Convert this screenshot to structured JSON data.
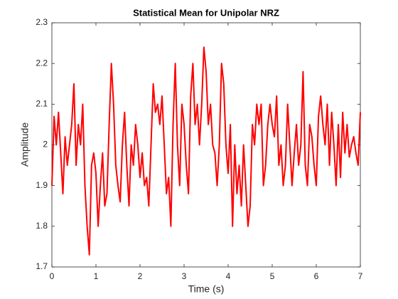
{
  "chart_data": {
    "type": "line",
    "title": "Statistical Mean for Unipolar NRZ",
    "xlabel": "Time (s)",
    "ylabel": "Amplitude",
    "x": [
      0,
      0.05,
      0.1,
      0.15,
      0.2,
      0.25,
      0.3,
      0.35,
      0.4,
      0.45,
      0.5,
      0.55,
      0.6,
      0.65,
      0.7,
      0.75,
      0.8,
      0.85,
      0.9,
      0.95,
      1,
      1.05,
      1.1,
      1.15,
      1.2,
      1.25,
      1.3,
      1.35,
      1.4,
      1.45,
      1.5,
      1.55,
      1.6,
      1.65,
      1.7,
      1.75,
      1.8,
      1.85,
      1.9,
      1.95,
      2,
      2.05,
      2.1,
      2.15,
      2.2,
      2.25,
      2.3,
      2.35,
      2.4,
      2.45,
      2.5,
      2.55,
      2.6,
      2.65,
      2.7,
      2.75,
      2.8,
      2.85,
      2.9,
      2.95,
      3,
      3.05,
      3.1,
      3.15,
      3.2,
      3.25,
      3.3,
      3.35,
      3.4,
      3.45,
      3.5,
      3.55,
      3.6,
      3.65,
      3.7,
      3.75,
      3.8,
      3.85,
      3.9,
      3.95,
      4,
      4.05,
      4.1,
      4.15,
      4.2,
      4.25,
      4.3,
      4.35,
      4.4,
      4.45,
      4.5,
      4.55,
      4.6,
      4.65,
      4.7,
      4.75,
      4.8,
      4.85,
      4.9,
      4.95,
      5,
      5.05,
      5.1,
      5.15,
      5.2,
      5.25,
      5.3,
      5.35,
      5.4,
      5.45,
      5.5,
      5.55,
      5.6,
      5.65,
      5.7,
      5.75,
      5.8,
      5.85,
      5.9,
      5.95,
      6,
      6.05,
      6.1,
      6.15,
      6.2,
      6.25,
      6.3,
      6.35,
      6.4,
      6.45,
      6.5,
      6.55,
      6.6,
      6.65,
      6.7,
      6.75,
      6.8,
      6.85,
      6.9,
      6.95,
      7
    ],
    "series": [
      {
        "color": "#ff0000",
        "values": [
          1.9,
          2.07,
          2.0,
          2.08,
          1.98,
          1.88,
          2.02,
          1.95,
          2.0,
          2.05,
          2.15,
          1.95,
          2.05,
          2.0,
          2.1,
          1.9,
          1.8,
          1.73,
          1.95,
          1.98,
          1.93,
          1.8,
          1.9,
          1.98,
          1.85,
          1.88,
          2.05,
          2.2,
          2.1,
          1.95,
          1.9,
          1.86,
          2.0,
          2.08,
          1.95,
          1.85,
          2.0,
          1.95,
          2.05,
          2.0,
          1.92,
          1.98,
          1.9,
          1.92,
          1.85,
          2.0,
          2.15,
          2.08,
          2.1,
          2.05,
          2.12,
          2.0,
          1.88,
          1.92,
          1.8,
          2.05,
          2.2,
          2.0,
          1.9,
          2.1,
          2.05,
          1.95,
          1.88,
          2.12,
          2.2,
          2.05,
          2.1,
          2.0,
          2.1,
          2.24,
          2.18,
          2.05,
          2.1,
          2.0,
          1.98,
          1.9,
          2.0,
          2.2,
          2.15,
          2.0,
          1.93,
          2.05,
          1.8,
          2.0,
          1.88,
          1.95,
          1.85,
          2.0,
          1.9,
          1.8,
          1.85,
          2.05,
          2.0,
          2.1,
          2.05,
          2.1,
          1.9,
          1.95,
          2.05,
          2.1,
          2.05,
          2.02,
          2.12,
          1.95,
          2.0,
          1.9,
          1.95,
          2.1,
          2.0,
          1.9,
          1.98,
          2.05,
          1.95,
          2.0,
          2.18,
          1.95,
          1.9,
          2.05,
          2.02,
          1.95,
          1.9,
          2.07,
          2.12,
          2.05,
          2.0,
          2.1,
          1.95,
          2.08,
          2.0,
          1.9,
          2.05,
          1.92,
          2.08,
          1.98,
          2.05,
          1.97,
          2.0,
          2.02,
          1.98,
          1.95,
          2.08
        ]
      }
    ],
    "xlim": [
      0,
      7
    ],
    "xticks": [
      0,
      1,
      2,
      3,
      4,
      5,
      6,
      7
    ],
    "ylim": [
      1.7,
      2.3
    ],
    "yticks": [
      1.7,
      1.8,
      1.9,
      2,
      2.1,
      2.2,
      2.3
    ]
  }
}
